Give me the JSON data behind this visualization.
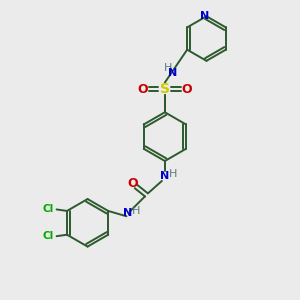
{
  "bg_color": "#ebebeb",
  "line_color": "#2d5a2d",
  "n_color": "#0000cc",
  "o_color": "#cc0000",
  "s_color": "#cccc00",
  "cl_color": "#00aa00",
  "h_color": "#5a7a7a",
  "bond_width": 1.4,
  "figsize": [
    3.0,
    3.0
  ],
  "dpi": 100,
  "xlim": [
    0,
    10
  ],
  "ylim": [
    0,
    10
  ]
}
